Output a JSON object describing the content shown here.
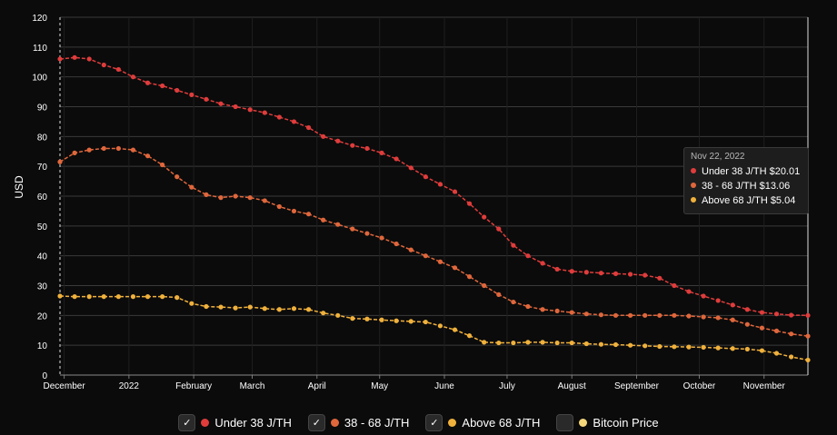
{
  "chart_data": {
    "type": "line",
    "ylabel": "USD",
    "ylim": [
      0,
      120
    ],
    "yticks": [
      0,
      10,
      20,
      30,
      40,
      50,
      60,
      70,
      80,
      90,
      100,
      110,
      120
    ],
    "xlim": [
      "2021-11-29",
      "2022-11-22"
    ],
    "xticks": [
      {
        "label": "December",
        "date": "2021-12-01"
      },
      {
        "label": "2022",
        "date": "2022-01-01"
      },
      {
        "label": "February",
        "date": "2022-02-01"
      },
      {
        "label": "March",
        "date": "2022-03-01"
      },
      {
        "label": "April",
        "date": "2022-04-01"
      },
      {
        "label": "May",
        "date": "2022-05-01"
      },
      {
        "label": "June",
        "date": "2022-06-01"
      },
      {
        "label": "July",
        "date": "2022-07-01"
      },
      {
        "label": "August",
        "date": "2022-08-01"
      },
      {
        "label": "September",
        "date": "2022-09-01"
      },
      {
        "label": "October",
        "date": "2022-10-01"
      },
      {
        "label": "November",
        "date": "2022-11-01"
      }
    ],
    "grid": true,
    "legend_position": "bottom",
    "x": [
      "2021-11-29",
      "2021-12-06",
      "2021-12-13",
      "2021-12-20",
      "2021-12-27",
      "2022-01-03",
      "2022-01-10",
      "2022-01-17",
      "2022-01-24",
      "2022-01-31",
      "2022-02-07",
      "2022-02-14",
      "2022-02-21",
      "2022-02-28",
      "2022-03-07",
      "2022-03-14",
      "2022-03-21",
      "2022-03-28",
      "2022-04-04",
      "2022-04-11",
      "2022-04-18",
      "2022-04-25",
      "2022-05-02",
      "2022-05-09",
      "2022-05-16",
      "2022-05-23",
      "2022-05-30",
      "2022-06-06",
      "2022-06-13",
      "2022-06-20",
      "2022-06-27",
      "2022-07-04",
      "2022-07-11",
      "2022-07-18",
      "2022-07-25",
      "2022-08-01",
      "2022-08-08",
      "2022-08-15",
      "2022-08-22",
      "2022-08-29",
      "2022-09-05",
      "2022-09-12",
      "2022-09-19",
      "2022-09-26",
      "2022-10-03",
      "2022-10-10",
      "2022-10-17",
      "2022-10-24",
      "2022-10-31",
      "2022-11-07",
      "2022-11-14",
      "2022-11-22"
    ],
    "series": [
      {
        "name": "Under 38 J/TH",
        "color": "#e03c3c",
        "values": [
          106,
          106.5,
          106,
          104,
          102.5,
          100,
          98,
          97,
          95.5,
          94,
          92.5,
          91,
          90,
          89,
          88,
          86.5,
          85,
          83,
          80,
          78.5,
          77,
          76,
          74.5,
          72.5,
          69.5,
          66.5,
          64,
          61.5,
          57.5,
          53,
          49,
          43.5,
          40,
          37.5,
          35.5,
          34.8,
          34.5,
          34.2,
          34,
          33.8,
          33.5,
          32.5,
          30,
          28,
          26.5,
          25,
          23.5,
          22,
          21,
          20.5,
          20.1,
          20.01
        ]
      },
      {
        "name": "38 - 68 J/TH",
        "color": "#e0673c",
        "values": [
          71.5,
          74.5,
          75.5,
          76,
          76,
          75.5,
          73.5,
          70.5,
          66.5,
          63,
          60.5,
          59.5,
          60,
          59.5,
          58.5,
          56.5,
          55,
          54,
          52,
          50.5,
          49,
          47.5,
          46,
          44,
          42,
          40,
          38,
          36,
          33,
          30,
          27,
          24.5,
          23,
          22,
          21.5,
          21,
          20.5,
          20.2,
          20,
          20,
          20,
          20,
          20,
          19.8,
          19.5,
          19.2,
          18.5,
          17,
          15.8,
          14.8,
          13.8,
          13.06
        ]
      },
      {
        "name": "Above 68 J/TH",
        "color": "#f0b13c",
        "values": [
          26.5,
          26.3,
          26.3,
          26.3,
          26.3,
          26.3,
          26.3,
          26.3,
          26,
          24,
          23,
          22.8,
          22.5,
          22.8,
          22.3,
          22,
          22.3,
          22,
          20.8,
          20,
          19,
          18.8,
          18.5,
          18.2,
          18,
          17.8,
          16.5,
          15.2,
          13.2,
          11,
          10.8,
          10.8,
          11,
          11,
          10.8,
          10.8,
          10.5,
          10.3,
          10.2,
          10,
          9.8,
          9.6,
          9.5,
          9.4,
          9.3,
          9.1,
          8.9,
          8.7,
          8.2,
          7.3,
          6.1,
          5.04
        ]
      }
    ],
    "tooltip": {
      "date": "Nov 22, 2022",
      "rows": [
        {
          "label": "Under 38 J/TH $20.01",
          "color": "#e03c3c"
        },
        {
          "label": "38 - 68 J/TH $13.06",
          "color": "#e0673c"
        },
        {
          "label": "Above 68 J/TH $5.04",
          "color": "#f0b13c"
        }
      ]
    }
  },
  "legend": [
    {
      "label": "Under 38 J/TH",
      "color": "#e03c3c",
      "checked": true,
      "check_glyph": "✓"
    },
    {
      "label": "38 - 68 J/TH",
      "color": "#e0673c",
      "checked": true,
      "check_glyph": "✓"
    },
    {
      "label": "Above 68 J/TH",
      "color": "#f0b13c",
      "checked": true,
      "check_glyph": "✓"
    },
    {
      "label": "Bitcoin Price",
      "color": "#f5d77a",
      "checked": false,
      "check_glyph": ""
    }
  ]
}
